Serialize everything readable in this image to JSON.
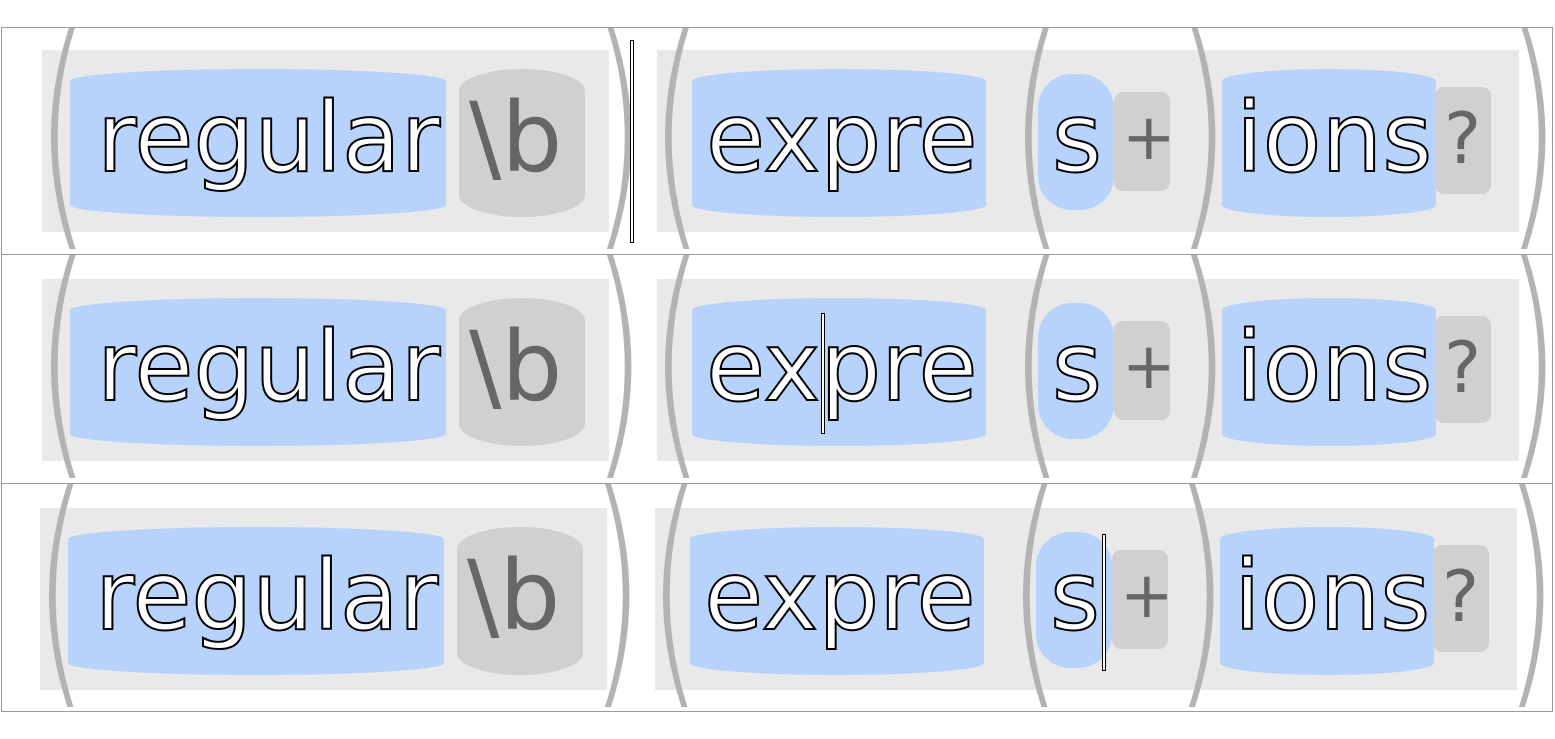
{
  "regex_tokens": {
    "lit1": "regular",
    "anchor": "\\b",
    "lit2": "expre",
    "lit3": "s",
    "quant_plus": "+",
    "lit4": "ions",
    "quant_optional": "?"
  },
  "cursor_steps": [
    "between-groups",
    "inside-expre-after-ex",
    "after-s"
  ],
  "colors": {
    "literal_block": "#b8d3fb",
    "group_background": "#e9e9e9",
    "operator_block": "#d0d0d0",
    "paren": "#b3b3b3",
    "operator_text": "#666666"
  }
}
